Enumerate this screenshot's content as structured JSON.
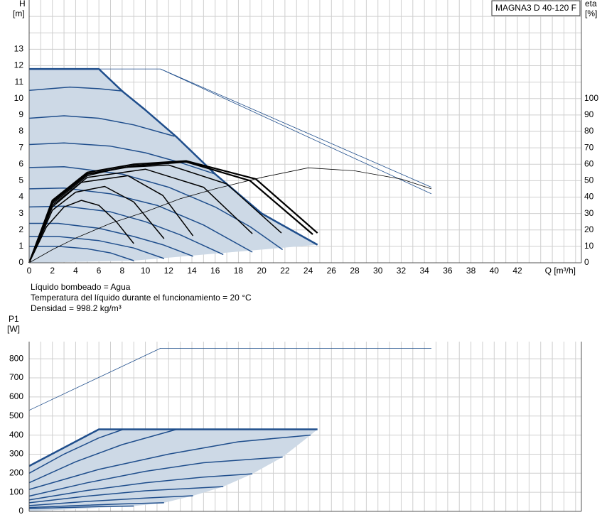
{
  "fluid_info": [
    "Líquido bombeado = Agua",
    "Temperatura del líquido durante el funcionamiento = 20 °C",
    "Densidad = 998.2 kg/m³"
  ],
  "chart_data": [
    {
      "type": "line",
      "title": "MAGNA3 D 40-120 F",
      "x_label": "Q [m³/h]",
      "y_label": "H",
      "y_unit": "[m]",
      "y2_label": "eta",
      "y2_unit": "[%]",
      "xlim": [
        0,
        47.5
      ],
      "xticks": [
        0,
        2,
        4,
        6,
        8,
        10,
        12,
        14,
        16,
        18,
        20,
        22,
        24,
        26,
        28,
        30,
        32,
        34,
        36,
        38,
        40,
        42
      ],
      "ylim": [
        0,
        16
      ],
      "yticks": [
        0,
        1,
        2,
        3,
        4,
        5,
        6,
        7,
        8,
        9,
        10,
        11,
        12,
        13
      ],
      "y2lim": [
        0,
        160
      ],
      "y2ticks": [
        0,
        10,
        20,
        30,
        40,
        50,
        60,
        70,
        80,
        90,
        100
      ],
      "grid": true,
      "area": {
        "color": "#cdd9e6",
        "x": [
          0,
          6,
          8,
          10,
          12.7,
          16,
          20,
          24.8,
          9,
          0
        ],
        "values": [
          11.8,
          11.8,
          10.45,
          9.3,
          7.65,
          5.4,
          3.0,
          1.1,
          0.13,
          0
        ]
      },
      "series": [
        {
          "color": "#1f4e8c",
          "width": 2.5,
          "x": [
            0,
            6,
            8,
            10,
            12.7,
            16,
            20,
            24.8
          ],
          "values": [
            11.8,
            11.8,
            10.45,
            9.3,
            7.65,
            5.4,
            3.0,
            1.1
          ]
        },
        {
          "color": "#1f4e8c",
          "width": 1.5,
          "x": [
            0,
            3.5,
            6,
            8.1
          ],
          "values": [
            10.5,
            10.7,
            10.6,
            10.45
          ]
        },
        {
          "color": "#1f4e8c",
          "width": 1.5,
          "x": [
            0,
            3,
            6,
            9,
            12.5
          ],
          "values": [
            8.8,
            8.95,
            8.8,
            8.4,
            7.7
          ]
        },
        {
          "color": "#1f4e8c",
          "width": 1.5,
          "x": [
            0,
            3,
            7,
            10,
            13,
            16
          ],
          "values": [
            7.2,
            7.3,
            7.1,
            6.7,
            6.1,
            5.4
          ]
        },
        {
          "color": "#1f4e8c",
          "width": 1.5,
          "x": [
            0,
            3,
            8,
            12,
            16,
            19,
            21.8
          ],
          "values": [
            5.8,
            5.85,
            5.4,
            4.6,
            3.4,
            2.2,
            0.8
          ]
        },
        {
          "color": "#1f4e8c",
          "width": 1.5,
          "x": [
            0,
            3,
            7,
            11,
            15,
            19.2
          ],
          "values": [
            4.5,
            4.55,
            4.2,
            3.5,
            2.3,
            0.65
          ]
        },
        {
          "color": "#1f4e8c",
          "width": 1.5,
          "x": [
            0,
            3,
            7,
            10,
            13,
            16.7
          ],
          "values": [
            3.4,
            3.45,
            3.1,
            2.5,
            1.7,
            0.5
          ]
        },
        {
          "color": "#1f4e8c",
          "width": 1.5,
          "x": [
            0,
            2.5,
            6,
            9,
            11.5,
            14.1
          ],
          "values": [
            2.4,
            2.4,
            2.1,
            1.6,
            1.1,
            0.4
          ]
        },
        {
          "color": "#1f4e8c",
          "width": 1.5,
          "x": [
            0,
            2.5,
            6,
            9,
            11.6
          ],
          "values": [
            1.6,
            1.6,
            1.35,
            0.9,
            0.26
          ]
        },
        {
          "color": "#1f4e8c",
          "width": 1.5,
          "x": [
            0,
            2.5,
            5,
            7,
            9
          ],
          "values": [
            1.0,
            1.0,
            0.85,
            0.6,
            0.13
          ]
        },
        {
          "color": "#000000",
          "width": 1.5,
          "x": [
            0,
            1.5,
            3,
            4.5,
            6,
            7.5,
            9
          ],
          "values": [
            0,
            2.2,
            3.4,
            3.8,
            3.5,
            2.5,
            1.17
          ]
        },
        {
          "color": "#000000",
          "width": 1.5,
          "x": [
            0,
            2,
            4,
            6.5,
            9,
            11.6
          ],
          "values": [
            0,
            3.2,
            4.3,
            4.65,
            3.7,
            1.47
          ]
        },
        {
          "color": "#000000",
          "width": 1.5,
          "x": [
            0,
            2,
            4.5,
            8.5,
            11.5,
            14.1
          ],
          "values": [
            0,
            3.4,
            4.9,
            5.3,
            4.1,
            1.64
          ]
        },
        {
          "color": "#000000",
          "width": 1.5,
          "x": [
            0,
            2,
            5,
            10,
            15,
            19.2
          ],
          "values": [
            0,
            3.5,
            5.2,
            5.7,
            4.6,
            1.77
          ]
        },
        {
          "color": "#000000",
          "width": 1.5,
          "x": [
            0,
            2,
            5,
            8,
            12,
            17,
            21.7
          ],
          "values": [
            0,
            3.6,
            5.3,
            5.8,
            5.95,
            4.8,
            1.81
          ]
        },
        {
          "color": "#000000",
          "width": 2.2,
          "x": [
            0,
            2,
            5,
            9,
            13.5,
            19,
            24.4
          ],
          "values": [
            0,
            3.7,
            5.4,
            5.9,
            6.15,
            5.0,
            1.73
          ]
        },
        {
          "color": "#000000",
          "width": 2.2,
          "x": [
            0,
            2,
            5,
            9,
            13.5,
            19.5,
            24.8
          ],
          "values": [
            0,
            3.8,
            5.5,
            6.0,
            6.2,
            5.1,
            1.81
          ]
        },
        {
          "color": "#1f4e8c",
          "width": 0.8,
          "x": [
            0,
            11.3,
            34.6
          ],
          "values": [
            11.8,
            11.8,
            4.6
          ]
        },
        {
          "color": "#1f4e8c",
          "width": 0.8,
          "x": [
            11.3,
            34.6
          ],
          "values": [
            11.8,
            4.2
          ]
        },
        {
          "color": "#000000",
          "width": 0.8,
          "axis": "y2",
          "x": [
            0,
            2,
            4,
            7,
            10,
            13,
            16,
            20,
            24,
            28,
            32,
            34.6
          ],
          "values": [
            0,
            8,
            15,
            24,
            31,
            39,
            45,
            52,
            57.8,
            56,
            51,
            45
          ]
        }
      ]
    },
    {
      "type": "line",
      "y_label": "P1",
      "y_unit": "[W]",
      "xlim": [
        0,
        47.5
      ],
      "ylim": [
        0,
        890
      ],
      "yticks": [
        0,
        100,
        200,
        300,
        400,
        500,
        600,
        700,
        800
      ],
      "grid": true,
      "area": {
        "color": "#cdd9e6",
        "x": [
          0,
          6,
          24.8,
          24.2,
          21.8,
          19.2,
          16.7,
          14.1,
          11.6,
          9,
          0
        ],
        "values": [
          238,
          430,
          430,
          400,
          285,
          197,
          130,
          82,
          45,
          28,
          0
        ]
      },
      "series": [
        {
          "color": "#1f4e8c",
          "width": 0.8,
          "x": [
            0,
            11.3,
            34.6
          ],
          "values": [
            530,
            855,
            855
          ]
        },
        {
          "color": "#1f4e8c",
          "width": 2.5,
          "x": [
            0,
            6,
            24.8
          ],
          "values": [
            238,
            430,
            430
          ]
        },
        {
          "color": "#1f4e8c",
          "width": 1.5,
          "x": [
            0,
            3,
            6,
            8.1
          ],
          "values": [
            200,
            300,
            385,
            430
          ]
        },
        {
          "color": "#1f4e8c",
          "width": 1.5,
          "x": [
            0,
            4,
            8,
            12.7
          ],
          "values": [
            150,
            260,
            350,
            430
          ]
        },
        {
          "color": "#1f4e8c",
          "width": 1.5,
          "x": [
            0,
            6,
            12,
            18,
            24.2
          ],
          "values": [
            115,
            220,
            300,
            365,
            400
          ]
        },
        {
          "color": "#1f4e8c",
          "width": 1.5,
          "x": [
            0,
            5,
            10,
            15,
            21.8
          ],
          "values": [
            80,
            150,
            210,
            255,
            285
          ]
        },
        {
          "color": "#1f4e8c",
          "width": 1.5,
          "x": [
            0,
            5,
            10,
            15,
            19.2
          ],
          "values": [
            60,
            110,
            150,
            180,
            197
          ]
        },
        {
          "color": "#1f4e8c",
          "width": 1.5,
          "x": [
            0,
            5,
            10,
            16.7
          ],
          "values": [
            45,
            80,
            108,
            130
          ]
        },
        {
          "color": "#1f4e8c",
          "width": 1.5,
          "x": [
            0,
            5,
            10,
            14.1
          ],
          "values": [
            30,
            52,
            70,
            82
          ]
        },
        {
          "color": "#1f4e8c",
          "width": 1.5,
          "x": [
            0,
            4,
            8,
            11.6
          ],
          "values": [
            20,
            30,
            39,
            45
          ]
        },
        {
          "color": "#1f4e8c",
          "width": 1.5,
          "x": [
            0,
            3,
            6,
            9
          ],
          "values": [
            15,
            20,
            25,
            28
          ]
        }
      ]
    }
  ]
}
